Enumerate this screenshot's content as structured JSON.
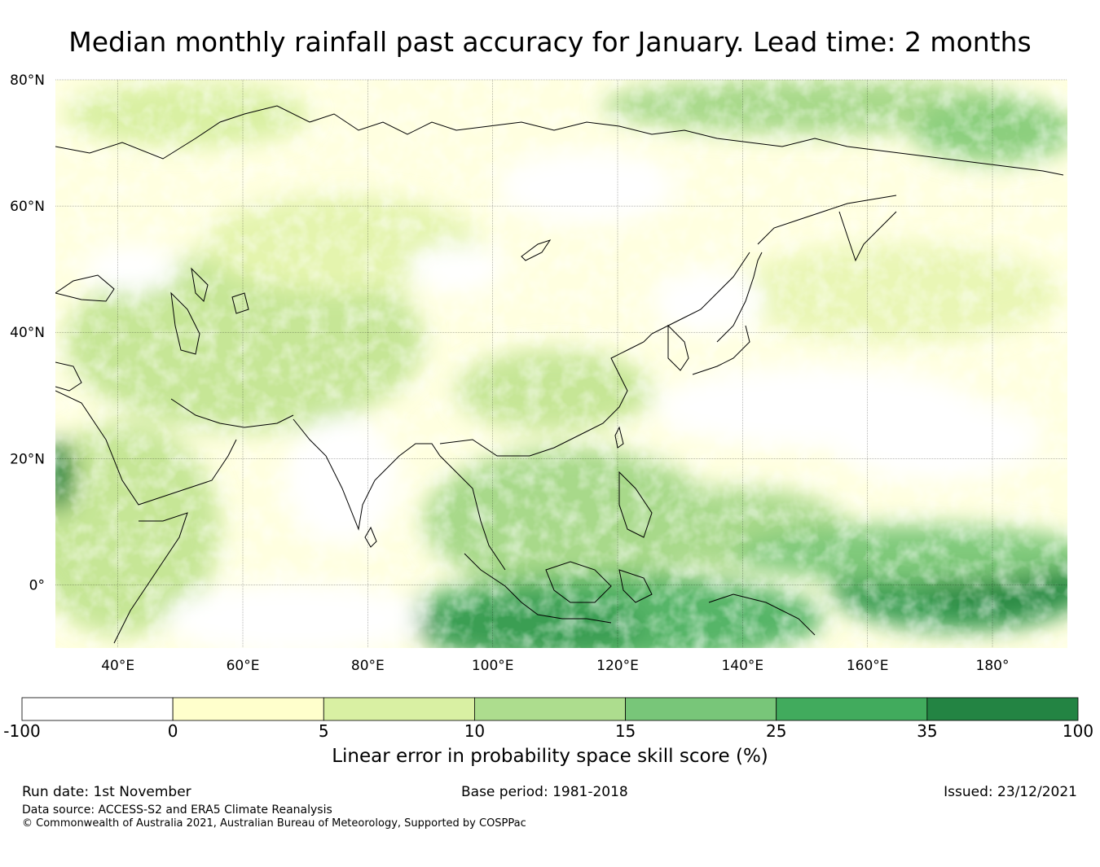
{
  "title": "Median monthly rainfall past accuracy for January. Lead time: 2 months",
  "map": {
    "lat_labels": [
      "80°N",
      "60°N",
      "40°N",
      "20°N",
      "0°"
    ],
    "lon_labels": [
      "40°E",
      "60°E",
      "80°E",
      "100°E",
      "120°E",
      "140°E",
      "160°E",
      "180°"
    ],
    "lon_range": [
      30,
      192
    ],
    "lat_range": [
      -10,
      80
    ]
  },
  "legend": {
    "title": "Linear error in probability space skill score (%)",
    "boundaries": [
      "-100",
      "0",
      "5",
      "10",
      "15",
      "25",
      "35",
      "100"
    ],
    "colors": [
      "#ffffff",
      "#ffffcc",
      "#d9f0a3",
      "#addd8e",
      "#78c679",
      "#41ab5d",
      "#238443"
    ]
  },
  "footer": {
    "run_date": "Run date: 1st November",
    "base_period": "Base period: 1981-2018",
    "issued": "Issued: 23/12/2021",
    "data_source": "Data source: ACCESS-S2 and ERA5 Climate Reanalysis",
    "copyright": "© Commonwealth of Australia 2021, Australian Bureau of Meteorology, Supported by COSPPac"
  }
}
